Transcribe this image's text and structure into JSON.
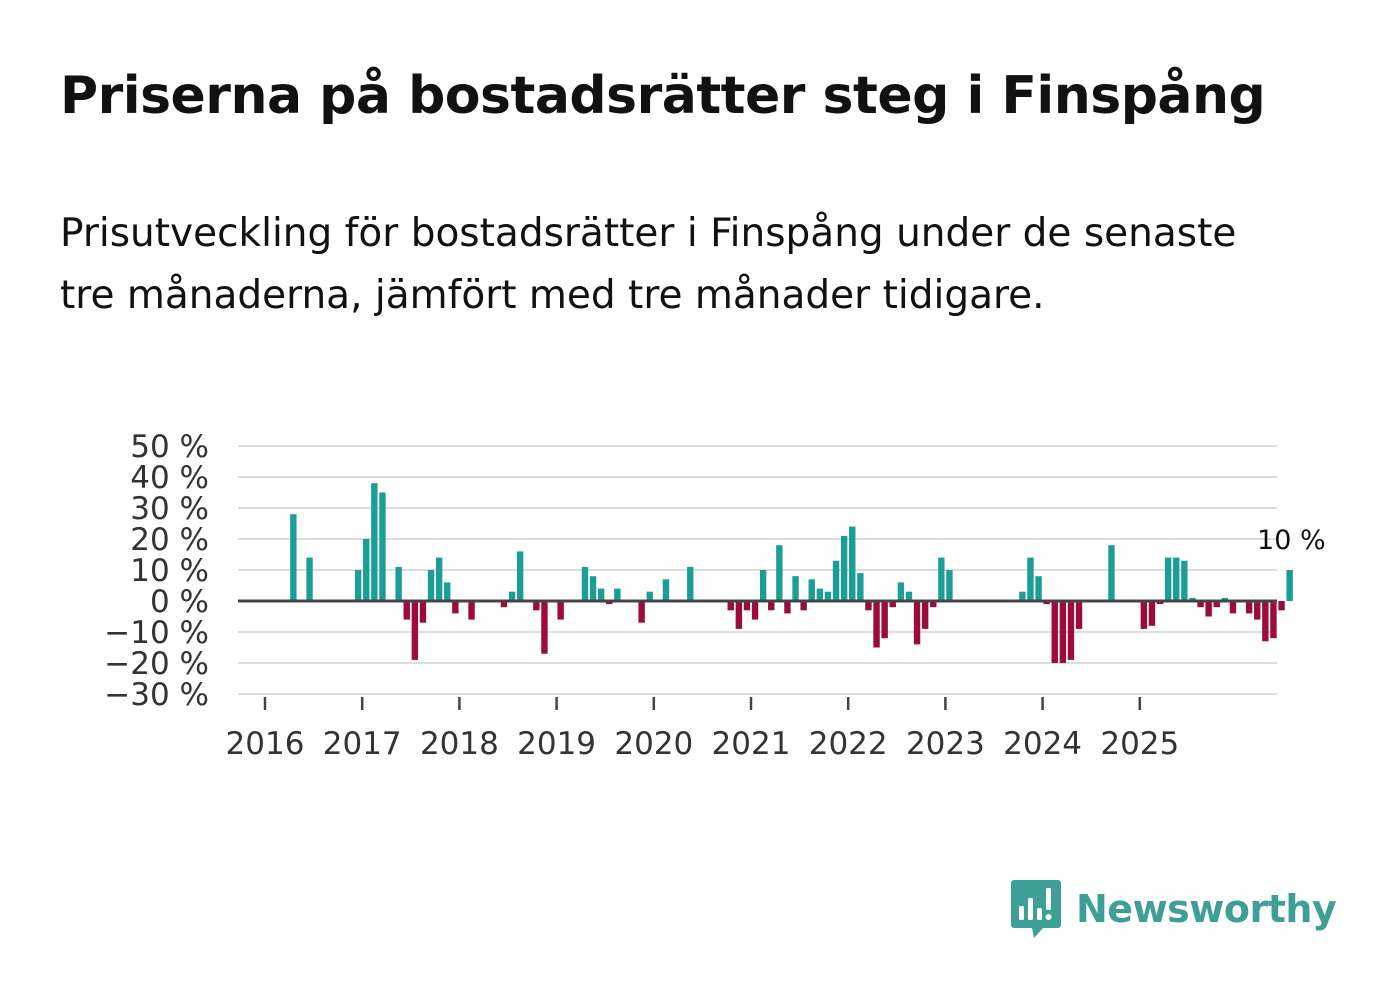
{
  "header": {
    "title": "Priserna på bostadsrätter steg i Finspång",
    "subtitle": "Prisutveckling för bostadsrätter i Finspång under de senaste tre månaderna, jämfört med tre månader tidigare."
  },
  "brand": {
    "name": "Newsworthy"
  },
  "colors": {
    "positive": "#1b9e96",
    "negative": "#9c0a3e",
    "grid": "#dddddd",
    "zero": "#444444",
    "text": "#333333"
  },
  "chart_data": {
    "type": "bar",
    "title": "Priserna på bostadsrätter steg i Finspång",
    "ylim": [
      -30,
      50
    ],
    "y_ticks": [
      50,
      40,
      30,
      20,
      10,
      0,
      -10,
      -20,
      -30
    ],
    "y_tick_labels": [
      "50 %",
      "40 %",
      "30 %",
      "20 %",
      "10 %",
      "0 %",
      "−10 %",
      "−20 %",
      "−30 %"
    ],
    "x_tick_labels": [
      "2016",
      "2017",
      "2018",
      "2019",
      "2020",
      "2021",
      "2022",
      "2023",
      "2024",
      "2025"
    ],
    "start": "2016-01",
    "frequency": "monthly",
    "last_value_label": "10 %",
    "values": [
      null,
      null,
      null,
      28,
      null,
      14,
      null,
      null,
      null,
      null,
      null,
      10,
      20,
      38,
      35,
      null,
      11,
      -6,
      -19,
      -7,
      10,
      14,
      6,
      -4,
      null,
      -6,
      null,
      null,
      null,
      -2,
      3,
      16,
      null,
      -3,
      -17,
      null,
      -6,
      null,
      null,
      11,
      8,
      4,
      -1,
      4,
      null,
      null,
      -7,
      3,
      null,
      7,
      null,
      null,
      11,
      null,
      null,
      null,
      null,
      -3,
      -9,
      -3,
      -6,
      10,
      -3,
      18,
      -4,
      8,
      -3,
      7,
      4,
      3,
      13,
      21,
      24,
      9,
      -3,
      -15,
      -12,
      -2,
      6,
      3,
      -14,
      -9,
      -2,
      14,
      10,
      null,
      null,
      null,
      null,
      null,
      null,
      null,
      null,
      3,
      14,
      8,
      -1,
      -20,
      -20,
      -19,
      -9,
      null,
      null,
      null,
      18,
      null,
      null,
      null,
      -9,
      -8,
      -1,
      14,
      14,
      13,
      1,
      -2,
      -5,
      -2,
      1,
      -4,
      null,
      -4,
      -6,
      -13,
      -12,
      -3,
      10
    ]
  }
}
